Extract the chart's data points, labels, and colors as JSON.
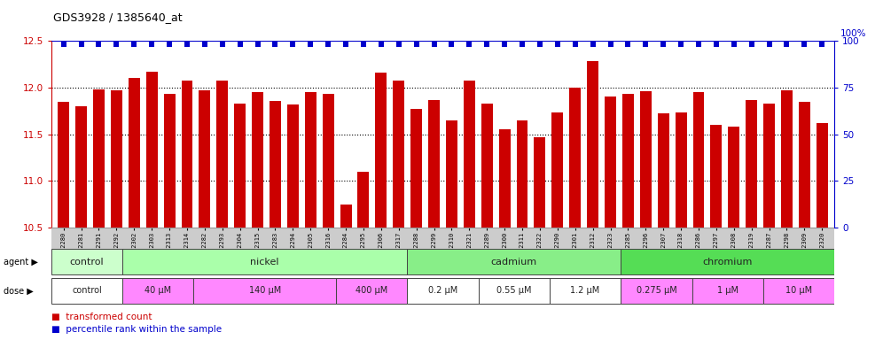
{
  "title": "GDS3928 / 1385640_at",
  "samples": [
    "GSM782280",
    "GSM782281",
    "GSM782291",
    "GSM782292",
    "GSM782302",
    "GSM782303",
    "GSM782313",
    "GSM782314",
    "GSM782282",
    "GSM782293",
    "GSM782304",
    "GSM782315",
    "GSM782283",
    "GSM782294",
    "GSM782305",
    "GSM782316",
    "GSM782284",
    "GSM782295",
    "GSM782306",
    "GSM782317",
    "GSM782288",
    "GSM782299",
    "GSM782310",
    "GSM782321",
    "GSM782289",
    "GSM782300",
    "GSM782311",
    "GSM782322",
    "GSM782290",
    "GSM782301",
    "GSM782312",
    "GSM782323",
    "GSM782285",
    "GSM782296",
    "GSM782307",
    "GSM782318",
    "GSM782286",
    "GSM782297",
    "GSM782308",
    "GSM782319",
    "GSM782287",
    "GSM782298",
    "GSM782309",
    "GSM782320"
  ],
  "bar_values": [
    11.85,
    11.8,
    11.98,
    11.97,
    12.1,
    12.17,
    11.93,
    12.07,
    11.97,
    12.07,
    11.83,
    11.95,
    11.86,
    11.82,
    11.95,
    11.93,
    10.75,
    11.1,
    12.16,
    12.07,
    11.77,
    11.87,
    11.65,
    12.07,
    11.83,
    11.55,
    11.65,
    11.47,
    11.73,
    12.0,
    12.28,
    11.9,
    11.93,
    11.96,
    11.72,
    11.73,
    11.95,
    11.6,
    11.58,
    11.87,
    11.83,
    11.97,
    11.85,
    11.62
  ],
  "percentile_values": [
    98,
    98,
    98,
    98,
    98,
    98,
    98,
    98,
    98,
    98,
    98,
    98,
    98,
    98,
    98,
    98,
    98,
    98,
    98,
    98,
    98,
    98,
    98,
    98,
    98,
    98,
    98,
    98,
    98,
    98,
    98,
    98,
    98,
    98,
    98,
    98,
    98,
    98,
    98,
    98,
    98,
    98,
    98,
    98
  ],
  "ylim": [
    10.5,
    12.5
  ],
  "yticks_left": [
    10.5,
    11.0,
    11.5,
    12.0,
    12.5
  ],
  "yticks_right": [
    0,
    25,
    50,
    75,
    100
  ],
  "bar_color": "#cc0000",
  "percentile_color": "#0000cc",
  "agent_groups": [
    {
      "label": "control",
      "start": 0,
      "end": 4,
      "color": "#ccffcc"
    },
    {
      "label": "nickel",
      "start": 4,
      "end": 20,
      "color": "#aaffaa"
    },
    {
      "label": "cadmium",
      "start": 20,
      "end": 32,
      "color": "#88ee88"
    },
    {
      "label": "chromium",
      "start": 32,
      "end": 44,
      "color": "#55dd55"
    }
  ],
  "dose_groups": [
    {
      "label": "control",
      "start": 0,
      "end": 4,
      "color": "#ffffff"
    },
    {
      "label": "40 μM",
      "start": 4,
      "end": 8,
      "color": "#ff88ff"
    },
    {
      "label": "140 μM",
      "start": 8,
      "end": 16,
      "color": "#ff88ff"
    },
    {
      "label": "400 μM",
      "start": 16,
      "end": 20,
      "color": "#ff88ff"
    },
    {
      "label": "0.2 μM",
      "start": 20,
      "end": 24,
      "color": "#ffffff"
    },
    {
      "label": "0.55 μM",
      "start": 24,
      "end": 28,
      "color": "#ffffff"
    },
    {
      "label": "1.2 μM",
      "start": 28,
      "end": 32,
      "color": "#ffffff"
    },
    {
      "label": "0.275 μM",
      "start": 32,
      "end": 36,
      "color": "#ff88ff"
    },
    {
      "label": "1 μM",
      "start": 36,
      "end": 40,
      "color": "#ff88ff"
    },
    {
      "label": "10 μM",
      "start": 40,
      "end": 44,
      "color": "#ff88ff"
    }
  ],
  "background_color": "#ffffff",
  "tick_label_bg": "#cccccc",
  "gridline_yticks": [
    11.0,
    11.5,
    12.0
  ]
}
